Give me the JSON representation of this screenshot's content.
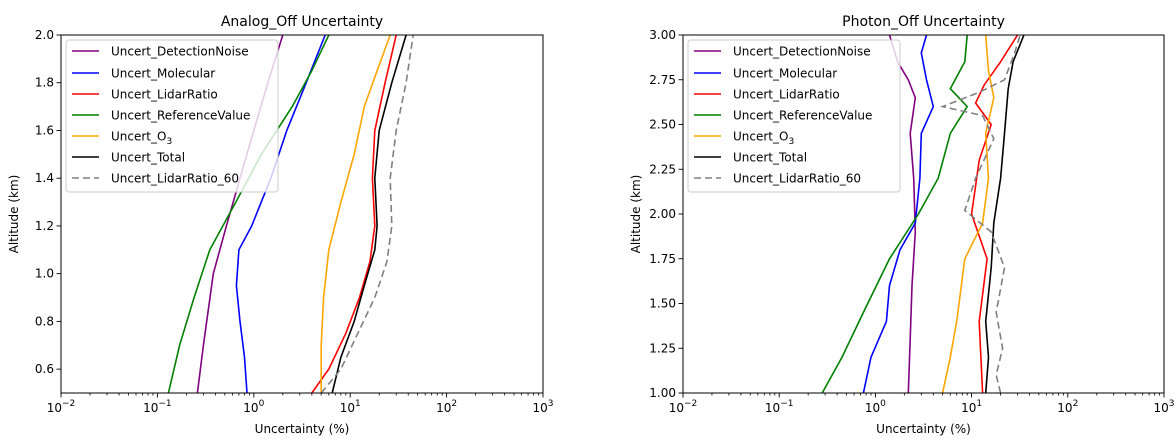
{
  "chart_data": [
    {
      "type": "line",
      "title": "Analog_Off Uncertainty",
      "xlabel": "Uncertainty (%)",
      "ylabel": "Altitude (km)",
      "xscale": "log",
      "xlim": [
        0.01,
        1000
      ],
      "ylim": [
        0.5,
        2.0
      ],
      "x_ticks": [
        {
          "value": 0.01,
          "base": "10",
          "exp": "−2"
        },
        {
          "value": 0.1,
          "base": "10",
          "exp": "−1"
        },
        {
          "value": 1,
          "base": "10",
          "exp": "0"
        },
        {
          "value": 10,
          "base": "10",
          "exp": "1"
        },
        {
          "value": 100,
          "base": "10",
          "exp": "2"
        },
        {
          "value": 1000,
          "base": "10",
          "exp": "3"
        }
      ],
      "y_ticks": [
        "0.6",
        "0.8",
        "1.0",
        "1.2",
        "1.4",
        "1.6",
        "1.8",
        "2.0"
      ],
      "legend_position": "top-left",
      "series": [
        {
          "name": "Uncert_DetectionNoise",
          "name_base": "Uncert_DetectionNoise",
          "name_sub": "",
          "color": "#800080",
          "dash": "",
          "points": [
            [
              0.26,
              0.5
            ],
            [
              0.3,
              0.7
            ],
            [
              0.38,
              1.0
            ],
            [
              0.52,
              1.2
            ],
            [
              0.72,
              1.4
            ],
            [
              1.0,
              1.6
            ],
            [
              1.4,
              1.8
            ],
            [
              2.0,
              2.0
            ]
          ]
        },
        {
          "name": "Uncert_Molecular",
          "name_base": "Uncert_Molecular",
          "name_sub": "",
          "color": "#0000ff",
          "dash": "",
          "points": [
            [
              0.85,
              0.5
            ],
            [
              0.8,
              0.65
            ],
            [
              0.72,
              0.8
            ],
            [
              0.66,
              0.95
            ],
            [
              0.7,
              1.1
            ],
            [
              0.95,
              1.2
            ],
            [
              1.5,
              1.4
            ],
            [
              2.2,
              1.6
            ],
            [
              3.5,
              1.8
            ],
            [
              5.5,
              2.0
            ]
          ]
        },
        {
          "name": "Uncert_LidarRatio",
          "name_base": "Uncert_LidarRatio",
          "name_sub": "",
          "color": "#ff0000",
          "dash": "",
          "points": [
            [
              4.0,
              0.5
            ],
            [
              6.0,
              0.6
            ],
            [
              9.0,
              0.75
            ],
            [
              12.5,
              0.9
            ],
            [
              16.0,
              1.05
            ],
            [
              18.0,
              1.2
            ],
            [
              17.0,
              1.4
            ],
            [
              18.0,
              1.6
            ],
            [
              23.0,
              1.8
            ],
            [
              30.0,
              2.0
            ]
          ]
        },
        {
          "name": "Uncert_ReferenceValue",
          "name_base": "Uncert_ReferenceValue",
          "name_sub": "",
          "color": "#008000",
          "dash": "",
          "points": [
            [
              0.13,
              0.5
            ],
            [
              0.17,
              0.7
            ],
            [
              0.24,
              0.9
            ],
            [
              0.35,
              1.1
            ],
            [
              0.65,
              1.3
            ],
            [
              1.2,
              1.5
            ],
            [
              2.5,
              1.7
            ],
            [
              4.0,
              1.85
            ],
            [
              6.0,
              2.0
            ]
          ]
        },
        {
          "name": "Uncert_O3",
          "name_base": "Uncert_O",
          "name_sub": "3",
          "color": "#ffa500",
          "dash": "",
          "points": [
            [
              5.0,
              0.5
            ],
            [
              5.0,
              0.7
            ],
            [
              5.3,
              0.9
            ],
            [
              6.0,
              1.1
            ],
            [
              8.0,
              1.3
            ],
            [
              11.0,
              1.5
            ],
            [
              14.0,
              1.7
            ],
            [
              19.0,
              1.85
            ],
            [
              26.0,
              2.0
            ]
          ]
        },
        {
          "name": "Uncert_Total",
          "name_base": "Uncert_Total",
          "name_sub": "",
          "color": "#000000",
          "dash": "",
          "points": [
            [
              6.5,
              0.5
            ],
            [
              8.0,
              0.65
            ],
            [
              11.0,
              0.8
            ],
            [
              14.0,
              0.95
            ],
            [
              18.0,
              1.1
            ],
            [
              19.0,
              1.2
            ],
            [
              18.0,
              1.4
            ],
            [
              20.0,
              1.6
            ],
            [
              27.0,
              1.8
            ],
            [
              38.0,
              2.0
            ]
          ]
        },
        {
          "name": "Uncert_LidarRatio_60",
          "name_base": "Uncert_LidarRatio_60",
          "name_sub": "",
          "color": "#808080",
          "dash": "7 4",
          "points": [
            [
              5.0,
              0.5
            ],
            [
              8.0,
              0.6
            ],
            [
              12.0,
              0.75
            ],
            [
              18.0,
              0.9
            ],
            [
              24.0,
              1.05
            ],
            [
              27.0,
              1.2
            ],
            [
              26.0,
              1.4
            ],
            [
              30.0,
              1.6
            ],
            [
              38.0,
              1.8
            ],
            [
              45.0,
              2.0
            ]
          ]
        }
      ]
    },
    {
      "type": "line",
      "title": "Photon_Off Uncertainty",
      "xlabel": "Uncertainty (%)",
      "ylabel": "Altitude (km)",
      "xscale": "log",
      "xlim": [
        0.01,
        1000
      ],
      "ylim": [
        1.0,
        3.0
      ],
      "x_ticks": [
        {
          "value": 0.01,
          "base": "10",
          "exp": "−2"
        },
        {
          "value": 0.1,
          "base": "10",
          "exp": "−1"
        },
        {
          "value": 1,
          "base": "10",
          "exp": "0"
        },
        {
          "value": 10,
          "base": "10",
          "exp": "1"
        },
        {
          "value": 100,
          "base": "10",
          "exp": "2"
        },
        {
          "value": 1000,
          "base": "10",
          "exp": "3"
        }
      ],
      "y_ticks": [
        "1.00",
        "1.25",
        "1.50",
        "1.75",
        "2.00",
        "2.25",
        "2.50",
        "2.75",
        "3.00"
      ],
      "legend_position": "top-left",
      "series": [
        {
          "name": "Uncert_DetectionNoise",
          "name_base": "Uncert_DetectionNoise",
          "name_sub": "",
          "color": "#800080",
          "dash": "",
          "points": [
            [
              2.2,
              1.0
            ],
            [
              2.3,
              1.3
            ],
            [
              2.4,
              1.6
            ],
            [
              2.6,
              1.9
            ],
            [
              2.5,
              2.2
            ],
            [
              2.3,
              2.45
            ],
            [
              2.6,
              2.65
            ],
            [
              2.2,
              2.75
            ],
            [
              1.7,
              2.85
            ],
            [
              1.4,
              3.0
            ]
          ]
        },
        {
          "name": "Uncert_Molecular",
          "name_base": "Uncert_Molecular",
          "name_sub": "",
          "color": "#0000ff",
          "dash": "",
          "points": [
            [
              0.75,
              1.0
            ],
            [
              0.9,
              1.2
            ],
            [
              1.3,
              1.4
            ],
            [
              1.4,
              1.6
            ],
            [
              1.8,
              1.8
            ],
            [
              2.6,
              1.95
            ],
            [
              2.9,
              2.2
            ],
            [
              3.0,
              2.45
            ],
            [
              4.0,
              2.6
            ],
            [
              3.4,
              2.75
            ],
            [
              3.0,
              2.9
            ],
            [
              3.4,
              3.0
            ]
          ]
        },
        {
          "name": "Uncert_LidarRatio",
          "name_base": "Uncert_LidarRatio",
          "name_sub": "",
          "color": "#ff0000",
          "dash": "",
          "points": [
            [
              13.0,
              1.0
            ],
            [
              12.5,
              1.2
            ],
            [
              12.0,
              1.4
            ],
            [
              14.5,
              1.75
            ],
            [
              10.0,
              2.0
            ],
            [
              12.0,
              2.3
            ],
            [
              16.0,
              2.5
            ],
            [
              11.0,
              2.62
            ],
            [
              13.5,
              2.72
            ],
            [
              20.0,
              2.85
            ],
            [
              30.0,
              3.0
            ]
          ]
        },
        {
          "name": "Uncert_ReferenceValue",
          "name_base": "Uncert_ReferenceValue",
          "name_sub": "",
          "color": "#008000",
          "dash": "",
          "points": [
            [
              0.28,
              1.0
            ],
            [
              0.45,
              1.2
            ],
            [
              0.75,
              1.45
            ],
            [
              1.4,
              1.75
            ],
            [
              2.8,
              2.0
            ],
            [
              4.5,
              2.2
            ],
            [
              6.0,
              2.45
            ],
            [
              9.0,
              2.6
            ],
            [
              6.0,
              2.7
            ],
            [
              8.5,
              2.85
            ],
            [
              9.0,
              3.0
            ]
          ]
        },
        {
          "name": "Uncert_O3",
          "name_base": "Uncert_O",
          "name_sub": "3",
          "color": "#ffa500",
          "dash": "",
          "points": [
            [
              5.0,
              1.0
            ],
            [
              6.0,
              1.2
            ],
            [
              7.0,
              1.4
            ],
            [
              8.5,
              1.75
            ],
            [
              13.0,
              1.95
            ],
            [
              15.0,
              2.2
            ],
            [
              14.0,
              2.45
            ],
            [
              17.0,
              2.65
            ],
            [
              15.0,
              2.8
            ],
            [
              14.0,
              3.0
            ]
          ]
        },
        {
          "name": "Uncert_Total",
          "name_base": "Uncert_Total",
          "name_sub": "",
          "color": "#000000",
          "dash": "",
          "points": [
            [
              14.0,
              1.0
            ],
            [
              15.0,
              1.2
            ],
            [
              14.0,
              1.4
            ],
            [
              16.0,
              1.7
            ],
            [
              17.0,
              1.95
            ],
            [
              20.0,
              2.2
            ],
            [
              22.0,
              2.45
            ],
            [
              24.0,
              2.7
            ],
            [
              27.0,
              2.85
            ],
            [
              35.0,
              3.0
            ]
          ]
        },
        {
          "name": "Uncert_LidarRatio_60",
          "name_base": "Uncert_LidarRatio_60",
          "name_sub": "",
          "color": "#808080",
          "dash": "7 4",
          "points": [
            [
              20.0,
              1.0
            ],
            [
              18.0,
              1.1
            ],
            [
              21.0,
              1.25
            ],
            [
              18.0,
              1.45
            ],
            [
              22.0,
              1.7
            ],
            [
              16.0,
              1.9
            ],
            [
              8.5,
              2.02
            ],
            [
              11.0,
              2.2
            ],
            [
              17.0,
              2.42
            ],
            [
              13.0,
              2.55
            ],
            [
              5.0,
              2.6
            ],
            [
              12.0,
              2.68
            ],
            [
              22.0,
              2.75
            ],
            [
              28.0,
              2.9
            ],
            [
              32.0,
              3.0
            ]
          ]
        }
      ]
    }
  ]
}
